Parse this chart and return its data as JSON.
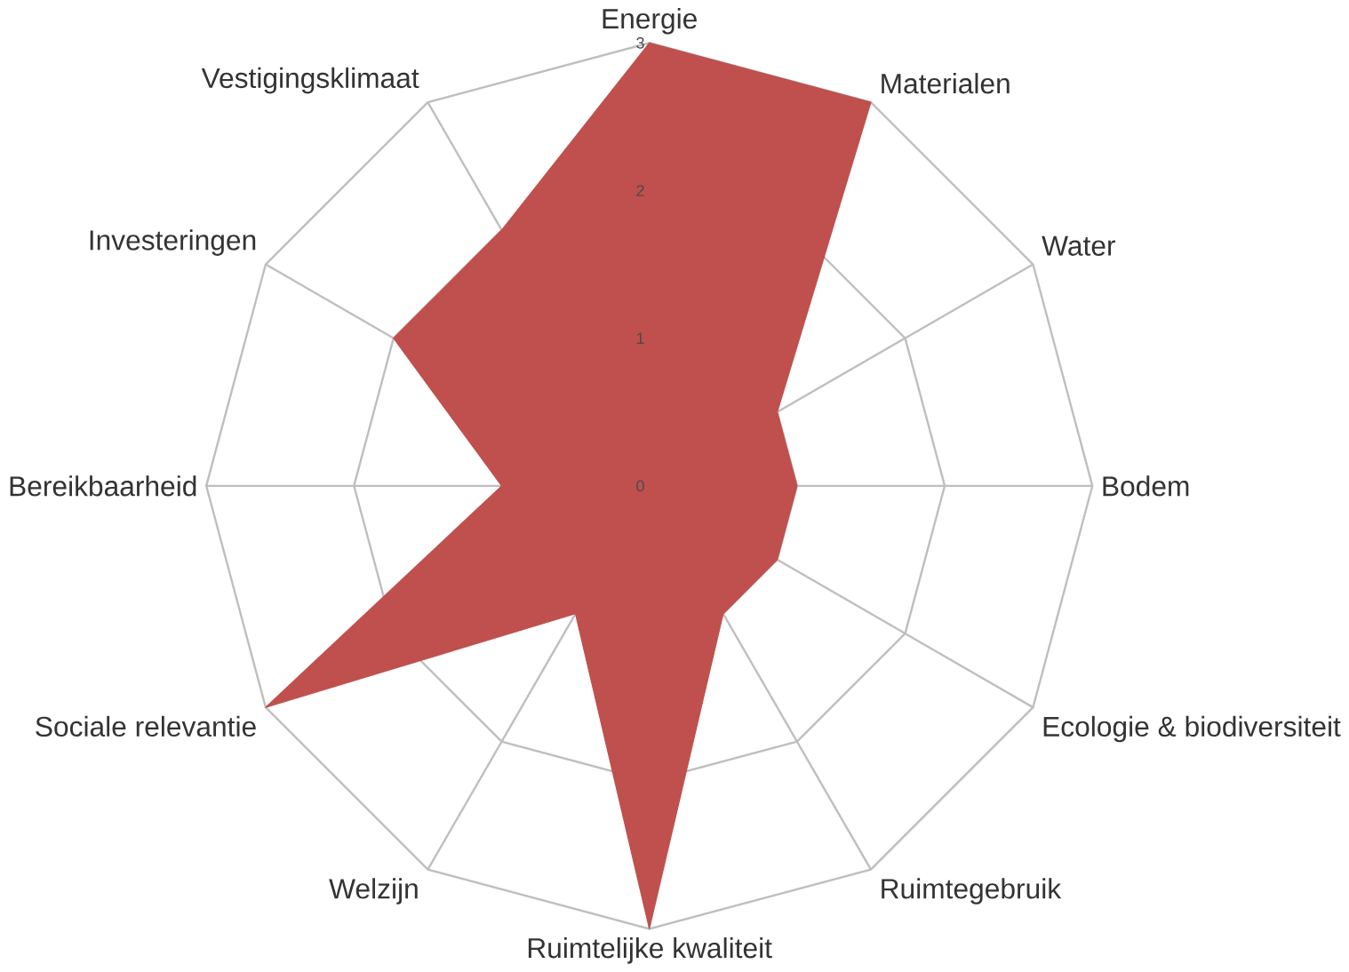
{
  "chart_data": {
    "type": "radar",
    "categories": [
      "Energie",
      "Materialen",
      "Water",
      "Bodem",
      "Ecologie & biodiversiteit",
      "Ruimtegebruik",
      "Ruimtelijke kwaliteit",
      "Welzijn",
      "Sociale relevantie",
      "Bereikbaarheid",
      "Investeringen",
      "Vestigingsklimaat"
    ],
    "series": [
      {
        "color": "#c0504d",
        "values": [
          3,
          3,
          1,
          1,
          1,
          1,
          3,
          1,
          3,
          1,
          2,
          2
        ]
      }
    ],
    "ylim": [
      0,
      3
    ],
    "yticks": [
      0,
      1,
      2,
      3
    ],
    "grid": true
  }
}
